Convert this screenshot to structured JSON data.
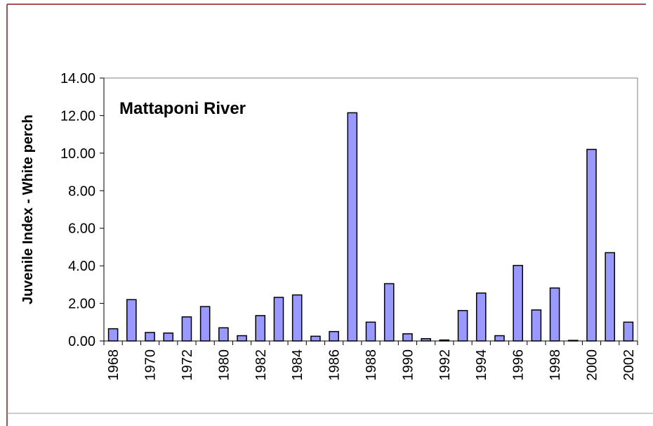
{
  "chart_data": {
    "type": "bar",
    "title": "Mattaponi River",
    "y_label": "Juvenile Index - White perch",
    "categories": [
      "1968",
      null,
      "1970",
      null,
      "1972",
      null,
      "1980",
      null,
      "1982",
      null,
      "1984",
      null,
      "1986",
      null,
      "1988",
      null,
      "1990",
      null,
      "1992",
      null,
      "1994",
      null,
      "1996",
      null,
      "1998",
      null,
      "2000",
      null,
      "2002"
    ],
    "values": [
      0.65,
      2.2,
      0.45,
      0.42,
      1.28,
      1.83,
      0.7,
      0.28,
      1.35,
      2.32,
      2.45,
      0.25,
      0.5,
      12.15,
      1.0,
      3.05,
      0.38,
      0.12,
      0.05,
      1.62,
      2.55,
      0.28,
      4.02,
      1.65,
      2.82,
      0.03,
      10.2,
      4.7,
      1.0
    ],
    "color": "#9999ff",
    "ylim": [
      0,
      14
    ],
    "yticks": [
      {
        "value": 0,
        "label": "0.00"
      },
      {
        "value": 2,
        "label": "2.00"
      },
      {
        "value": 4,
        "label": "4.00"
      },
      {
        "value": 6,
        "label": "6.00"
      },
      {
        "value": 8,
        "label": "8.00"
      },
      {
        "value": 10,
        "label": "10.00"
      },
      {
        "value": 12,
        "label": "12.00"
      },
      {
        "value": 14,
        "label": "14.00"
      }
    ]
  }
}
